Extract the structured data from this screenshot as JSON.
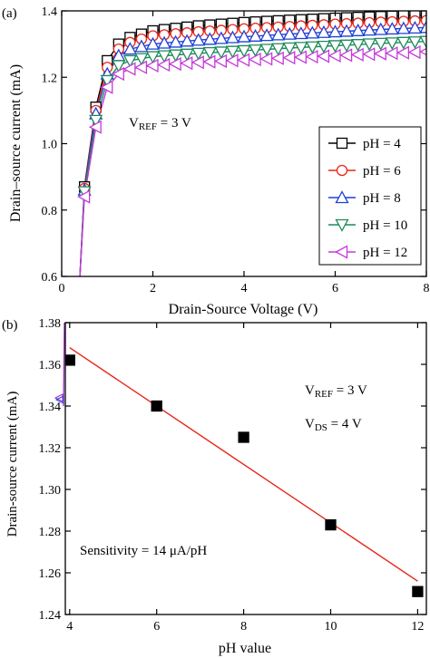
{
  "chart_data": [
    {
      "panel_label": "(a)",
      "type": "line",
      "markers": true,
      "xlabel": "Drain-Source Voltage (V)",
      "ylabel": "Drain–source current (mA)",
      "xlim": [
        0,
        8
      ],
      "ylim": [
        0.6,
        1.4
      ],
      "xticks": [
        0,
        2,
        4,
        6,
        8
      ],
      "yticks": [
        0.6,
        0.8,
        1.0,
        1.2,
        1.4
      ],
      "xtick_labels": [
        "0",
        "2",
        "4",
        "6",
        "8"
      ],
      "ytick_labels": [
        "0.6",
        "0.8",
        "1.0",
        "1.2",
        "1.4"
      ],
      "grid": false,
      "legend_position": "right",
      "annotation": {
        "prefix": "V",
        "sub": "REF",
        "suffix": " = 3 V"
      },
      "series": [
        {
          "name": "pH = 4",
          "color": "#000000",
          "marker": "square",
          "x": [
            0.4,
            0.5,
            0.75,
            1.0,
            1.25,
            1.5,
            2,
            3,
            4,
            5,
            6,
            7,
            8
          ],
          "y": [
            0.6,
            0.87,
            1.11,
            1.25,
            1.3,
            1.32,
            1.34,
            1.355,
            1.365,
            1.372,
            1.378,
            1.383,
            1.388
          ]
        },
        {
          "name": "pH = 6",
          "color": "#e8261b",
          "marker": "circle",
          "x": [
            0.4,
            0.5,
            0.75,
            1.0,
            1.25,
            1.5,
            2,
            3,
            4,
            5,
            6,
            7,
            8
          ],
          "y": [
            0.6,
            0.865,
            1.1,
            1.23,
            1.285,
            1.305,
            1.325,
            1.337,
            1.346,
            1.353,
            1.36,
            1.366,
            1.371
          ]
        },
        {
          "name": "pH = 8",
          "color": "#1f3fd6",
          "marker": "triangle-up",
          "x": [
            0.4,
            0.5,
            0.75,
            1.0,
            1.25,
            1.5,
            2,
            3,
            4,
            5,
            6,
            7,
            8
          ],
          "y": [
            0.6,
            0.86,
            1.09,
            1.21,
            1.265,
            1.285,
            1.3,
            1.312,
            1.322,
            1.33,
            1.337,
            1.344,
            1.35
          ]
        },
        {
          "name": "pH = 10",
          "color": "#1c8a5a",
          "marker": "triangle-down",
          "x": [
            0.4,
            0.5,
            0.75,
            1.0,
            1.25,
            1.5,
            2,
            3,
            4,
            5,
            6,
            7,
            8
          ],
          "y": [
            0.6,
            0.855,
            1.07,
            1.19,
            1.235,
            1.25,
            1.262,
            1.272,
            1.28,
            1.288,
            1.295,
            1.302,
            1.308
          ]
        },
        {
          "name": "pH = 12",
          "color": "#c43bd8",
          "marker": "triangle-left",
          "x": [
            0.4,
            0.5,
            0.75,
            1.0,
            1.25,
            1.5,
            2,
            3,
            4,
            5,
            6,
            7,
            8
          ],
          "y": [
            0.6,
            0.84,
            1.05,
            1.17,
            1.21,
            1.225,
            1.235,
            1.245,
            1.252,
            1.259,
            1.265,
            1.271,
            1.277
          ]
        }
      ]
    },
    {
      "panel_label": "(b)",
      "type": "scatter",
      "xlabel": "pH value",
      "ylabel": "Drain-source current (mA)",
      "xlim": [
        3.9,
        12.2
      ],
      "ylim": [
        1.24,
        1.38
      ],
      "xticks": [
        4,
        6,
        8,
        10,
        12
      ],
      "yticks": [
        1.24,
        1.26,
        1.28,
        1.3,
        1.32,
        1.34,
        1.36,
        1.38
      ],
      "xtick_labels": [
        "4",
        "6",
        "8",
        "10",
        "12"
      ],
      "ytick_labels": [
        "1.24",
        "1.26",
        "1.28",
        "1.30",
        "1.32",
        "1.34",
        "1.36",
        "1.38"
      ],
      "grid": false,
      "annotations": [
        {
          "prefix": "V",
          "sub": "REF",
          "suffix": " = 3 V"
        },
        {
          "prefix": "V",
          "sub": "DS",
          "suffix": " = 4 V"
        },
        {
          "prefix": "Sensitivity = 14 μA/pH",
          "sub": "",
          "suffix": ""
        }
      ],
      "series": [
        {
          "color": "#000000",
          "marker": "square",
          "x": [
            4,
            6,
            8,
            10,
            12
          ],
          "y": [
            1.362,
            1.34,
            1.325,
            1.283,
            1.251
          ]
        },
        {
          "type": "line",
          "color": "#e8261b",
          "x": [
            4,
            12
          ],
          "y": [
            1.368,
            1.256
          ]
        }
      ]
    }
  ]
}
